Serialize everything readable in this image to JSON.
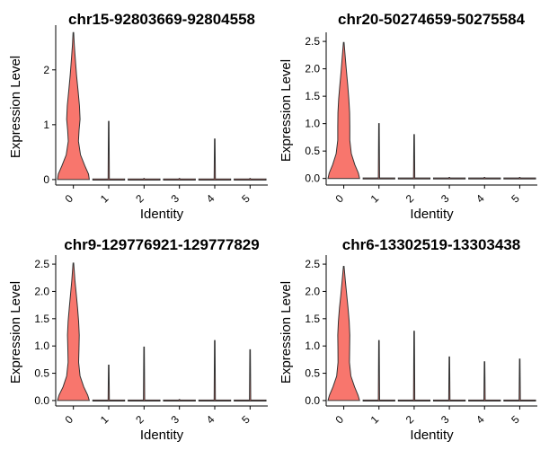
{
  "colors": {
    "violin_fill": "#F8766D",
    "violin_stroke": "#333333",
    "axis": "#000000"
  },
  "chart_data": [
    {
      "type": "violin",
      "title": "chr15-92803669-92804558",
      "xlabel": "Identity",
      "ylabel": "Expression Level",
      "categories": [
        "0",
        "1",
        "2",
        "3",
        "4",
        "5"
      ],
      "ylim": [
        -0.1,
        2.75
      ],
      "yticks": [
        0,
        1,
        2
      ],
      "ytick_labels": [
        "0",
        "1",
        "2"
      ],
      "violins": [
        {
          "category": "0",
          "max": 2.68,
          "profile": [
            [
              0,
              1.0
            ],
            [
              0.1,
              0.95
            ],
            [
              0.25,
              0.72
            ],
            [
              0.45,
              0.45
            ],
            [
              0.7,
              0.32
            ],
            [
              0.9,
              0.36
            ],
            [
              1.1,
              0.42
            ],
            [
              1.35,
              0.38
            ],
            [
              1.6,
              0.3
            ],
            [
              1.9,
              0.2
            ],
            [
              2.2,
              0.12
            ],
            [
              2.45,
              0.06
            ],
            [
              2.68,
              0.02
            ]
          ]
        },
        {
          "category": "1",
          "max": 1.06
        },
        {
          "category": "2",
          "max": 0.02
        },
        {
          "category": "3",
          "max": 0.02
        },
        {
          "category": "4",
          "max": 0.74
        },
        {
          "category": "5",
          "max": 0.02
        }
      ]
    },
    {
      "type": "violin",
      "title": "chr20-50274659-50275584",
      "xlabel": "Identity",
      "ylabel": "Expression Level",
      "categories": [
        "0",
        "1",
        "2",
        "3",
        "4",
        "5"
      ],
      "ylim": [
        -0.12,
        2.6
      ],
      "yticks": [
        0,
        0.5,
        1.0,
        1.5,
        2.0,
        2.5
      ],
      "ytick_labels": [
        "0.0",
        "0.5",
        "1.0",
        "1.5",
        "2.0",
        "2.5"
      ],
      "violins": [
        {
          "category": "0",
          "max": 2.48,
          "profile": [
            [
              0,
              1.0
            ],
            [
              0.1,
              0.92
            ],
            [
              0.25,
              0.7
            ],
            [
              0.45,
              0.48
            ],
            [
              0.7,
              0.38
            ],
            [
              0.95,
              0.38
            ],
            [
              1.2,
              0.37
            ],
            [
              1.45,
              0.32
            ],
            [
              1.7,
              0.25
            ],
            [
              1.95,
              0.17
            ],
            [
              2.2,
              0.1
            ],
            [
              2.48,
              0.02
            ]
          ]
        },
        {
          "category": "1",
          "max": 1.0
        },
        {
          "category": "2",
          "max": 0.8
        },
        {
          "category": "3",
          "max": 0.02
        },
        {
          "category": "4",
          "max": 0.02
        },
        {
          "category": "5",
          "max": 0.02
        }
      ]
    },
    {
      "type": "violin",
      "title": "chr9-129776921-129777829",
      "xlabel": "Identity",
      "ylabel": "Expression Level",
      "categories": [
        "0",
        "1",
        "2",
        "3",
        "4",
        "5"
      ],
      "ylim": [
        -0.1,
        2.6
      ],
      "yticks": [
        0,
        0.5,
        1.0,
        1.5,
        2.0,
        2.5
      ],
      "ytick_labels": [
        "0.0",
        "0.5",
        "1.0",
        "1.5",
        "2.0",
        "2.5"
      ],
      "violins": [
        {
          "category": "0",
          "max": 2.52,
          "profile": [
            [
              0,
              1.0
            ],
            [
              0.1,
              0.9
            ],
            [
              0.25,
              0.65
            ],
            [
              0.45,
              0.42
            ],
            [
              0.7,
              0.33
            ],
            [
              0.95,
              0.35
            ],
            [
              1.2,
              0.37
            ],
            [
              1.45,
              0.33
            ],
            [
              1.7,
              0.26
            ],
            [
              1.95,
              0.18
            ],
            [
              2.2,
              0.1
            ],
            [
              2.52,
              0.02
            ]
          ]
        },
        {
          "category": "1",
          "max": 0.65
        },
        {
          "category": "2",
          "max": 0.98
        },
        {
          "category": "3",
          "max": 0.02
        },
        {
          "category": "4",
          "max": 1.1
        },
        {
          "category": "5",
          "max": 0.93
        }
      ]
    },
    {
      "type": "violin",
      "title": "chr6-13302519-13303438",
      "xlabel": "Identity",
      "ylabel": "Expression Level",
      "categories": [
        "0",
        "1",
        "2",
        "3",
        "4",
        "5"
      ],
      "ylim": [
        -0.1,
        2.6
      ],
      "yticks": [
        0,
        0.5,
        1.0,
        1.5,
        2.0,
        2.5
      ],
      "ytick_labels": [
        "0.0",
        "0.5",
        "1.0",
        "1.5",
        "2.0",
        "2.5"
      ],
      "violins": [
        {
          "category": "0",
          "max": 2.46,
          "profile": [
            [
              0,
              1.0
            ],
            [
              0.1,
              0.9
            ],
            [
              0.25,
              0.68
            ],
            [
              0.45,
              0.45
            ],
            [
              0.7,
              0.36
            ],
            [
              0.95,
              0.37
            ],
            [
              1.2,
              0.38
            ],
            [
              1.45,
              0.34
            ],
            [
              1.7,
              0.27
            ],
            [
              1.95,
              0.18
            ],
            [
              2.2,
              0.1
            ],
            [
              2.46,
              0.02
            ]
          ]
        },
        {
          "category": "1",
          "max": 1.1
        },
        {
          "category": "2",
          "max": 1.27
        },
        {
          "category": "3",
          "max": 0.8
        },
        {
          "category": "4",
          "max": 0.71
        },
        {
          "category": "5",
          "max": 0.76
        }
      ]
    }
  ]
}
